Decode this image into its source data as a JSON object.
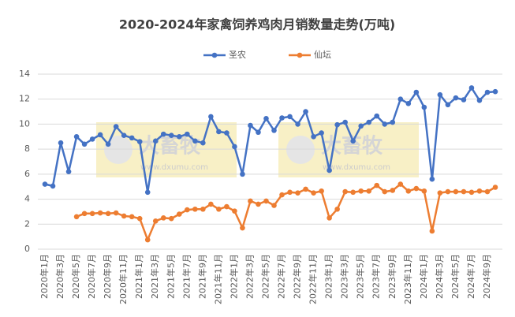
{
  "chart_data": {
    "type": "line",
    "title": "2020-2024年家禽饲养鸡肉月销数量走势(万吨)",
    "watermark": "大畜牧",
    "watermark_url": "www.dxumu.com",
    "categories": [
      "2020年1月",
      null,
      "2020年3月",
      null,
      "2020年5月",
      null,
      "2020年7月",
      null,
      "2020年9月",
      null,
      "2020年11月",
      null,
      "2021年1月",
      null,
      "2021年3月",
      null,
      "2021年5月",
      null,
      "2021年7月",
      null,
      "2021年9月",
      null,
      "2021年11月",
      null,
      "2022年1月",
      null,
      "2022年3月",
      null,
      "2022年5月",
      null,
      "2022年7月",
      null,
      "2022年9月",
      null,
      "2022年11月",
      null,
      "2023年1月",
      null,
      "2023年3月",
      null,
      "2023年5月",
      null,
      "2023年7月",
      null,
      "2023年9月",
      null,
      "2023年11月",
      null,
      "2024年1月",
      null,
      "2024年3月",
      null,
      "2024年5月",
      null,
      "2024年7月",
      null,
      "2024年9月",
      null
    ],
    "series": [
      {
        "name": "圣农",
        "color": "#4472c4",
        "values": [
          5.2,
          5.05,
          8.5,
          6.2,
          9.0,
          8.4,
          8.8,
          9.15,
          8.4,
          9.8,
          9.1,
          8.9,
          8.6,
          4.55,
          8.65,
          9.2,
          9.1,
          9.0,
          9.2,
          8.65,
          8.5,
          10.6,
          9.4,
          9.3,
          8.2,
          6.0,
          9.9,
          9.35,
          10.45,
          9.5,
          10.5,
          10.6,
          10.0,
          11.0,
          9.0,
          9.3,
          6.3,
          9.95,
          10.15,
          8.65,
          9.85,
          10.15,
          10.65,
          10.0,
          10.15,
          12.0,
          11.65,
          12.55,
          11.35,
          5.6,
          12.35,
          11.55,
          12.1,
          11.95,
          12.9,
          11.9,
          12.55,
          12.6
        ]
      },
      {
        "name": "仙坛",
        "color": "#ed7d31",
        "values": [
          null,
          null,
          null,
          null,
          2.6,
          2.85,
          2.85,
          2.9,
          2.85,
          2.9,
          2.65,
          2.6,
          2.45,
          0.75,
          2.25,
          2.5,
          2.45,
          2.8,
          3.15,
          3.2,
          3.2,
          3.6,
          3.2,
          3.4,
          3.05,
          1.7,
          3.85,
          3.6,
          3.85,
          3.5,
          4.35,
          4.55,
          4.5,
          4.8,
          4.5,
          4.65,
          2.5,
          3.2,
          4.6,
          4.55,
          4.65,
          4.65,
          5.1,
          4.6,
          4.7,
          5.2,
          4.65,
          4.85,
          4.65,
          1.45,
          4.5,
          4.6,
          4.6,
          4.6,
          4.55,
          4.65,
          4.6,
          4.95
        ]
      }
    ],
    "ylim": [
      0,
      14
    ],
    "yticks": [
      0,
      2,
      4,
      6,
      8,
      10,
      12,
      14
    ],
    "grid": true,
    "legend": "top"
  }
}
